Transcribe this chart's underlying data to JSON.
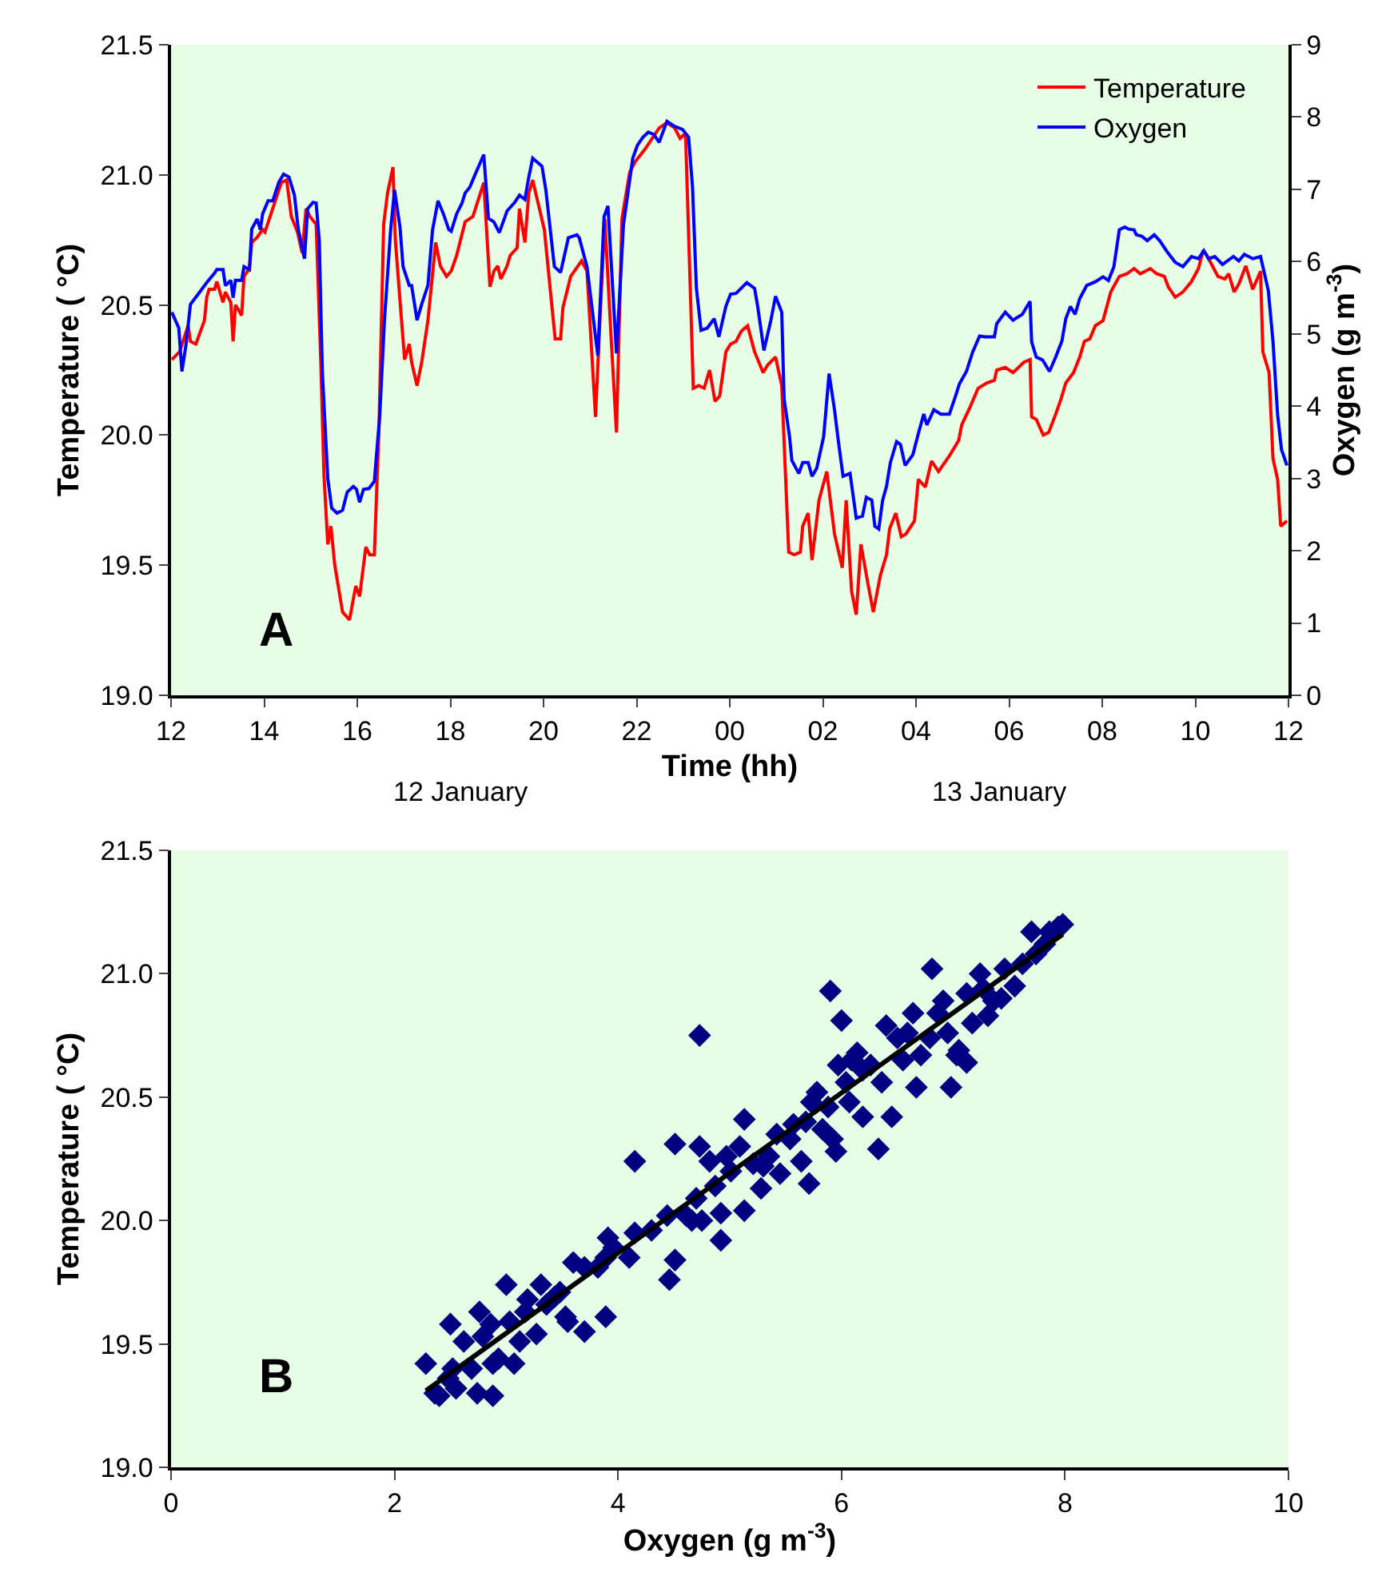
{
  "chart_data": [
    {
      "type": "line",
      "xlabel": "Time (hh)",
      "ylabel": "Temperature ( °C)",
      "y2label": "Oxygen (g m$^{-3}$)",
      "annotations": [
        "A",
        "12 January",
        "13 January"
      ],
      "legend": "top right",
      "xlim": [
        "--01-12T12:00",
        "--01-13T12:00"
      ],
      "xticks": [
        {
          "value": "--01-12T12:00",
          "label": "12"
        },
        {
          "value": "--01-12T14:00",
          "label": "14"
        },
        {
          "value": "--01-12T16:00",
          "label": "16"
        },
        {
          "value": "--01-12T18:00",
          "label": "18"
        },
        {
          "value": "--01-12T20:00",
          "label": "20"
        },
        {
          "value": "--01-12T22:00",
          "label": "22"
        },
        {
          "value": "--01-13T00:00",
          "label": "00"
        },
        {
          "value": "--01-13T02:00",
          "label": "02"
        },
        {
          "value": "--01-13T04:00",
          "label": "04"
        },
        {
          "value": "--01-13T06:00",
          "label": "06"
        },
        {
          "value": "--01-13T08:00",
          "label": "08"
        },
        {
          "value": "--01-13T10:00",
          "label": "10"
        },
        {
          "value": "--01-13T12:00",
          "label": "12"
        }
      ],
      "ylim": [
        19,
        21.5
      ],
      "yticks": [
        {
          "value": 19,
          "label": "19.0"
        },
        19.5,
        {
          "value": 20,
          "label": "20.0"
        },
        20.5,
        {
          "value": 21,
          "label": "21.0"
        },
        21.5
      ],
      "y2lim": [
        0,
        9
      ],
      "y2ticks": [
        0,
        1,
        2,
        3,
        4,
        5,
        6,
        7,
        8,
        9
      ],
      "series": [
        {
          "name": "Temperature",
          "color": "#ff0000",
          "x": [
            "--01-12T12:01",
            "--01-12T12:11",
            "--01-12T12:22",
            "--01-12T12:25",
            "--01-12T12:32",
            "--01-12T12:43",
            "--01-12T12:46",
            "--01-12T12:49",
            "--01-12T12:56",
            "--01-12T12:59",
            "--01-12T13:07",
            "--01-12T13:10",
            "--01-12T13:17",
            "--01-12T13:20",
            "--01-12T13:23",
            "--01-12T13:31",
            "--01-12T13:34",
            "--01-12T13:41",
            "--01-12T13:44",
            "--01-12T13:51",
            "--01-12T13:58",
            "--01-12T14:01",
            "--01-12T14:11",
            "--01-12T14:22",
            "--01-12T14:29",
            "--01-12T14:35",
            "--01-12T14:43",
            "--01-12T14:49",
            "--01-12T14:54",
            "--01-12T14:59",
            "--01-12T15:07",
            "--01-12T15:13",
            "--01-12T15:17",
            "--01-12T15:22",
            "--01-12T15:26",
            "--01-12T15:31",
            "--01-12T15:41",
            "--01-12T15:50",
            "--01-12T15:58",
            "--01-12T16:03",
            "--01-12T16:11",
            "--01-12T16:16",
            "--01-12T16:22",
            "--01-12T16:28",
            "--01-12T16:34",
            "--01-12T16:39",
            "--01-12T16:46",
            "--01-12T16:49",
            "--01-12T16:56",
            "--01-12T17:01",
            "--01-12T17:07",
            "--01-12T17:10",
            "--01-12T17:17",
            "--01-12T17:23",
            "--01-12T17:31",
            "--01-12T17:41",
            "--01-12T17:47",
            "--01-12T17:55",
            "--01-12T18:01",
            "--01-12T18:08",
            "--01-12T18:19",
            "--01-12T18:29",
            "--01-12T18:43",
            "--01-12T18:51",
            "--01-12T18:56",
            "--01-12T19:01",
            "--01-12T19:05",
            "--01-12T19:13",
            "--01-12T19:17",
            "--01-12T19:26",
            "--01-12T19:29",
            "--01-12T19:36",
            "--01-12T19:41",
            "--01-12T19:46",
            "--01-12T20:01",
            "--01-12T20:15",
            "--01-12T20:22",
            "--01-12T20:25",
            "--01-12T20:35",
            "--01-12T20:49",
            "--01-12T20:56",
            "--01-12T21:07",
            "--01-12T21:12",
            "--01-12T21:19",
            "--01-12T21:27",
            "--01-12T21:34",
            "--01-12T21:41",
            "--01-12T21:51",
            "--01-12T21:58",
            "--01-12T22:11",
            "--01-12T22:29",
            "--01-12T22:39",
            "--01-12T22:49",
            "--01-12T22:56",
            "--01-12T23:03",
            "--01-12T23:13",
            "--01-12T23:20",
            "--01-12T23:27",
            "--01-12T23:34",
            "--01-12T23:41",
            "--01-12T23:47",
            "--01-12T23:55",
            "--01-13T00:01",
            "--01-13T00:08",
            "--01-13T00:15",
            "--01-13T00:23",
            "--01-13T00:32",
            "--01-13T00:43",
            "--01-13T00:49",
            "--01-13T00:59",
            "--01-13T01:07",
            "--01-13T01:16",
            "--01-13T01:23",
            "--01-13T01:31",
            "--01-13T01:34",
            "--01-13T01:41",
            "--01-13T01:46",
            "--01-13T01:55",
            "--01-13T02:05",
            "--01-13T02:15",
            "--01-13T02:25",
            "--01-13T02:30",
            "--01-13T02:37",
            "--01-13T02:43",
            "--01-13T02:49",
            "--01-13T02:58",
            "--01-13T03:05",
            "--01-13T03:14",
            "--01-13T03:22",
            "--01-13T03:26",
            "--01-13T03:34",
            "--01-13T03:41",
            "--01-13T03:47",
            "--01-13T03:58",
            "--01-13T04:03",
            "--01-13T04:12",
            "--01-13T04:20",
            "--01-13T04:29",
            "--01-13T04:43",
            "--01-13T04:55",
            "--01-13T04:59",
            "--01-13T05:10",
            "--01-13T05:20",
            "--01-13T05:31",
            "--01-13T05:41",
            "--01-13T05:44",
            "--01-13T05:55",
            "--01-13T06:05",
            "--01-13T06:19",
            "--01-13T06:27",
            "--01-13T06:29",
            "--01-13T06:35",
            "--01-13T06:44",
            "--01-13T06:51",
            "--01-13T07:00",
            "--01-13T07:07",
            "--01-13T07:13",
            "--01-13T07:23",
            "--01-13T07:31",
            "--01-13T07:37",
            "--01-13T07:44",
            "--01-13T07:51",
            "--01-13T08:01",
            "--01-13T08:11",
            "--01-13T08:22",
            "--01-13T08:32",
            "--01-13T08:41",
            "--01-13T08:49",
            "--01-13T09:02",
            "--01-13T09:10",
            "--01-13T09:20",
            "--01-13T09:25",
            "--01-13T09:34",
            "--01-13T09:44",
            "--01-13T09:55",
            "--01-13T10:04",
            "--01-13T10:10",
            "--01-13T10:15",
            "--01-13T10:22",
            "--01-13T10:29",
            "--01-13T10:38",
            "--01-13T10:43",
            "--01-13T10:50",
            "--01-13T10:56",
            "--01-13T11:05",
            "--01-13T11:14",
            "--01-13T11:24",
            "--01-13T11:27",
            "--01-13T11:35",
            "--01-13T11:40",
            "--01-13T11:46",
            "--01-13T11:50",
            "--01-13T11:58"
          ],
          "values": [
            20.29,
            20.32,
            20.42,
            20.36,
            20.35,
            20.44,
            20.53,
            20.56,
            20.56,
            20.59,
            20.51,
            20.55,
            20.51,
            20.36,
            20.5,
            20.46,
            20.61,
            20.64,
            20.74,
            20.76,
            20.79,
            20.78,
            20.87,
            20.97,
            20.98,
            20.84,
            20.78,
            20.7,
            20.87,
            20.84,
            20.81,
            20.28,
            19.85,
            19.58,
            19.65,
            19.5,
            19.32,
            19.29,
            19.42,
            19.38,
            19.57,
            19.54,
            19.54,
            20.03,
            20.81,
            20.93,
            21.03,
            20.75,
            20.48,
            20.29,
            20.35,
            20.28,
            20.19,
            20.28,
            20.44,
            20.74,
            20.65,
            20.61,
            20.63,
            20.69,
            20.82,
            20.84,
            20.97,
            20.57,
            20.63,
            20.65,
            20.6,
            20.65,
            20.69,
            20.72,
            20.87,
            20.74,
            20.93,
            20.98,
            20.79,
            20.37,
            20.37,
            20.49,
            20.61,
            20.67,
            20.63,
            20.07,
            20.4,
            20.83,
            20.38,
            20.01,
            20.83,
            21.01,
            21.05,
            21.1,
            21.18,
            21.2,
            21.18,
            21.14,
            21.16,
            20.18,
            20.19,
            20.18,
            20.25,
            20.13,
            20.15,
            20.32,
            20.35,
            20.36,
            20.4,
            20.42,
            20.32,
            20.24,
            20.27,
            20.3,
            20.19,
            19.55,
            19.54,
            19.55,
            19.65,
            19.7,
            19.52,
            19.75,
            19.86,
            19.62,
            19.49,
            19.75,
            19.4,
            19.31,
            19.58,
            19.43,
            19.32,
            19.46,
            19.54,
            19.64,
            19.7,
            19.61,
            19.62,
            19.67,
            19.83,
            19.8,
            19.9,
            19.86,
            19.92,
            19.98,
            20.04,
            20.11,
            20.18,
            20.2,
            20.21,
            20.25,
            20.26,
            20.24,
            20.28,
            20.29,
            20.07,
            20.06,
            20.0,
            20.01,
            20.08,
            20.14,
            20.2,
            20.24,
            20.3,
            20.36,
            20.37,
            20.42,
            20.44,
            20.55,
            20.61,
            20.62,
            20.64,
            20.62,
            20.64,
            20.62,
            20.61,
            20.57,
            20.53,
            20.55,
            20.59,
            20.64,
            20.71,
            20.69,
            20.65,
            20.61,
            20.6,
            20.62,
            20.55,
            20.58,
            20.65,
            20.56,
            20.63,
            20.32,
            20.24,
            19.91,
            19.83,
            19.65,
            19.67
          ]
        },
        {
          "name": "Oxygen",
          "color": "#0000ff",
          "axis": "y2",
          "x": [
            "--01-12T12:01",
            "--01-12T12:10",
            "--01-12T12:14",
            "--01-12T12:19",
            "--01-12T12:25",
            "--01-12T12:35",
            "--01-12T12:46",
            "--01-12T12:56",
            "--01-12T12:59",
            "--01-12T13:07",
            "--01-12T13:10",
            "--01-12T13:17",
            "--01-12T13:20",
            "--01-12T13:23",
            "--01-12T13:31",
            "--01-12T13:34",
            "--01-12T13:41",
            "--01-12T13:44",
            "--01-12T13:51",
            "--01-12T13:55",
            "--01-12T13:58",
            "--01-12T14:05",
            "--01-12T14:11",
            "--01-12T14:19",
            "--01-12T14:25",
            "--01-12T14:32",
            "--01-12T14:39",
            "--01-12T14:44",
            "--01-12T14:52",
            "--01-12T14:56",
            "--01-12T15:03",
            "--01-12T15:07",
            "--01-12T15:11",
            "--01-12T15:15",
            "--01-12T15:22",
            "--01-12T15:27",
            "--01-12T15:34",
            "--01-12T15:41",
            "--01-12T15:47",
            "--01-12T15:55",
            "--01-12T15:59",
            "--01-12T16:03",
            "--01-12T16:08",
            "--01-12T16:15",
            "--01-12T16:22",
            "--01-12T16:29",
            "--01-12T16:35",
            "--01-12T16:43",
            "--01-12T16:48",
            "--01-12T16:55",
            "--01-12T16:59",
            "--01-12T17:07",
            "--01-12T17:10",
            "--01-12T17:17",
            "--01-12T17:23",
            "--01-12T17:31",
            "--01-12T17:37",
            "--01-12T17:44",
            "--01-12T17:51",
            "--01-12T17:58",
            "--01-12T18:01",
            "--01-12T18:08",
            "--01-12T18:15",
            "--01-12T18:19",
            "--01-12T18:25",
            "--01-12T18:32",
            "--01-12T18:43",
            "--01-12T18:49",
            "--01-12T18:56",
            "--01-12T19:03",
            "--01-12T19:13",
            "--01-12T19:23",
            "--01-12T19:29",
            "--01-12T19:36",
            "--01-12T19:41",
            "--01-12T19:46",
            "--01-12T19:58",
            "--01-12T20:03",
            "--01-12T20:14",
            "--01-12T20:22",
            "--01-12T20:32",
            "--01-12T20:43",
            "--01-12T20:46",
            "--01-12T20:56",
            "--01-12T21:10",
            "--01-12T21:18",
            "--01-12T21:23",
            "--01-12T21:34",
            "--01-12T21:43",
            "--01-12T21:55",
            "--01-12T22:01",
            "--01-12T22:08",
            "--01-12T22:15",
            "--01-12T22:22",
            "--01-12T22:29",
            "--01-12T22:39",
            "--01-12T22:49",
            "--01-12T22:59",
            "--01-12T23:07",
            "--01-12T23:12",
            "--01-12T23:17",
            "--01-12T23:23",
            "--01-12T23:31",
            "--01-12T23:40",
            "--01-12T23:46",
            "--01-12T23:55",
            "--01-13T00:01",
            "--01-13T00:08",
            "--01-13T00:22",
            "--01-13T00:32",
            "--01-13T00:36",
            "--01-13T00:44",
            "--01-13T00:53",
            "--01-13T00:59",
            "--01-13T01:07",
            "--01-13T01:10",
            "--01-13T01:17",
            "--01-13T01:20",
            "--01-13T01:29",
            "--01-13T01:34",
            "--01-13T01:41",
            "--01-13T01:46",
            "--01-13T01:52",
            "--01-13T02:01",
            "--01-13T02:08",
            "--01-13T02:15",
            "--01-13T02:20",
            "--01-13T02:26",
            "--01-13T02:35",
            "--01-13T02:43",
            "--01-13T02:51",
            "--01-13T02:56",
            "--01-13T03:03",
            "--01-13T03:07",
            "--01-13T03:12",
            "--01-13T03:17",
            "--01-13T03:22",
            "--01-13T03:27",
            "--01-13T03:35",
            "--01-13T03:40",
            "--01-13T03:46",
            "--01-13T03:56",
            "--01-13T04:03",
            "--01-13T04:10",
            "--01-13T04:14",
            "--01-13T04:23",
            "--01-13T04:32",
            "--01-13T04:43",
            "--01-13T04:50",
            "--01-13T04:56",
            "--01-13T05:05",
            "--01-13T05:13",
            "--01-13T05:22",
            "--01-13T05:29",
            "--01-13T05:41",
            "--01-13T05:44",
            "--01-13T05:55",
            "--01-13T06:05",
            "--01-13T06:17",
            "--01-13T06:27",
            "--01-13T06:29",
            "--01-13T06:35",
            "--01-13T06:43",
            "--01-13T06:52",
            "--01-13T07:00",
            "--01-13T07:08",
            "--01-13T07:13",
            "--01-13T07:19",
            "--01-13T07:25",
            "--01-13T07:31",
            "--01-13T07:40",
            "--01-13T07:51",
            "--01-13T08:01",
            "--01-13T08:08",
            "--01-13T08:15",
            "--01-13T08:22",
            "--01-13T08:29",
            "--01-13T08:34",
            "--01-13T08:41",
            "--01-13T08:44",
            "--01-13T08:51",
            "--01-13T08:58",
            "--01-13T09:07",
            "--01-13T09:14",
            "--01-13T09:24",
            "--01-13T09:34",
            "--01-13T09:44",
            "--01-13T09:55",
            "--01-13T10:04",
            "--01-13T10:11",
            "--01-13T10:17",
            "--01-13T10:25",
            "--01-13T10:35",
            "--01-13T10:49",
            "--01-13T10:56",
            "--01-13T11:03",
            "--01-13T11:14",
            "--01-13T11:24",
            "--01-13T11:34",
            "--01-13T11:40",
            "--01-13T11:46",
            "--01-13T11:51",
            "--01-13T11:58"
          ],
          "values": [
            5.3,
            5.08,
            4.48,
            4.83,
            5.41,
            5.55,
            5.71,
            5.84,
            5.89,
            5.89,
            5.67,
            5.74,
            5.5,
            5.74,
            5.74,
            5.93,
            5.89,
            6.45,
            6.59,
            6.44,
            6.66,
            6.84,
            6.84,
            7.1,
            7.21,
            7.17,
            6.92,
            6.44,
            6.04,
            6.73,
            6.82,
            6.81,
            6.29,
            4.46,
            3.0,
            2.59,
            2.52,
            2.56,
            2.81,
            2.89,
            2.85,
            2.67,
            2.85,
            2.86,
            2.96,
            3.88,
            5.19,
            6.44,
            6.99,
            6.48,
            5.93,
            5.67,
            5.67,
            5.19,
            5.41,
            5.67,
            6.44,
            6.84,
            6.66,
            6.44,
            6.42,
            6.66,
            6.81,
            6.95,
            7.03,
            7.21,
            7.48,
            6.6,
            6.55,
            6.4,
            6.7,
            6.82,
            6.92,
            6.86,
            7.17,
            7.43,
            7.32,
            6.99,
            5.93,
            5.85,
            6.33,
            6.37,
            6.33,
            5.93,
            4.7,
            6.62,
            6.77,
            4.73,
            6.51,
            7.43,
            7.61,
            7.72,
            7.79,
            7.76,
            7.65,
            7.94,
            7.87,
            7.83,
            7.72,
            7.03,
            5.63,
            5.05,
            5.08,
            5.21,
            4.96,
            5.38,
            5.55,
            5.56,
            5.71,
            5.63,
            5.38,
            4.77,
            5.19,
            5.52,
            5.3,
            4.1,
            3.58,
            3.25,
            3.07,
            3.22,
            3.22,
            3.03,
            3.14,
            3.58,
            4.45,
            3.95,
            3.51,
            3.03,
            3.07,
            2.45,
            2.48,
            2.74,
            2.7,
            2.34,
            2.3,
            2.7,
            2.89,
            3.22,
            3.51,
            3.47,
            3.18,
            3.33,
            3.62,
            3.89,
            3.74,
            3.95,
            3.89,
            3.89,
            4.11,
            4.31,
            4.48,
            4.75,
            4.97,
            4.96,
            4.96,
            5.14,
            5.3,
            5.19,
            5.27,
            5.45,
            4.89,
            4.68,
            4.64,
            4.48,
            4.68,
            4.9,
            5.21,
            5.38,
            5.27,
            5.49,
            5.67,
            5.72,
            5.79,
            5.74,
            5.93,
            6.44,
            6.48,
            6.45,
            6.44,
            6.37,
            6.35,
            6.29,
            6.37,
            6.29,
            6.13,
            5.99,
            5.93,
            6.07,
            6.04,
            6.15,
            6.04,
            6.07,
            5.96,
            6.07,
            6.01,
            6.1,
            6.04,
            6.07,
            5.6,
            4.9,
            3.88,
            3.4,
            3.18
          ]
        }
      ]
    },
    {
      "type": "scatter",
      "xlabel": "Oxygen (g m$^{-3}$)",
      "ylabel": "Temperature ( °C)",
      "annotations": [
        "B"
      ],
      "xlim": [
        0,
        10
      ],
      "xticks": [
        0,
        2,
        4,
        6,
        8,
        10
      ],
      "ylim": [
        19,
        21.5
      ],
      "yticks": [
        {
          "value": 19,
          "label": "19.0"
        },
        19.5,
        {
          "value": 20,
          "label": "20.0"
        },
        20.5,
        {
          "value": 21,
          "label": "21.0"
        },
        21.5
      ],
      "series": [
        {
          "color": "#000080",
          "marker": "diamond",
          "x": [
            2.28,
            2.36,
            2.4,
            2.48,
            2.52,
            2.55,
            2.5,
            2.62,
            2.69,
            2.74,
            2.76,
            2.79,
            2.86,
            2.88,
            2.88,
            2.93,
            3.0,
            3.03,
            3.07,
            3.12,
            3.17,
            3.19,
            3.27,
            3.31,
            3.36,
            3.43,
            3.48,
            3.53,
            3.55,
            3.6,
            3.7,
            3.7,
            3.82,
            3.89,
            3.89,
            3.91,
            3.96,
            4.1,
            4.15,
            4.15,
            4.3,
            4.44,
            4.46,
            4.51,
            4.51,
            4.61,
            4.66,
            4.7,
            4.73,
            4.73,
            4.75,
            4.82,
            4.87,
            4.92,
            4.92,
            4.97,
            5.01,
            5.09,
            5.13,
            5.13,
            5.21,
            5.28,
            5.3,
            5.35,
            5.42,
            5.45,
            5.54,
            5.57,
            5.64,
            5.68,
            5.71,
            5.73,
            5.78,
            5.83,
            5.88,
            5.9,
            5.92,
            5.95,
            5.97,
            6.0,
            6.04,
            6.07,
            6.09,
            6.14,
            6.19,
            6.19,
            6.26,
            6.33,
            6.36,
            6.4,
            6.45,
            6.5,
            6.55,
            6.59,
            6.64,
            6.67,
            6.71,
            6.79,
            6.81,
            6.86,
            6.91,
            6.95,
            6.98,
            7.03,
            7.05,
            7.12,
            7.12,
            7.17,
            7.24,
            7.27,
            7.31,
            7.36,
            7.43,
            7.46,
            7.55,
            7.62,
            7.7,
            7.74,
            7.82,
            7.86,
            7.94,
            7.98
          ],
          "values": [
            19.42,
            19.3,
            19.29,
            19.36,
            19.4,
            19.32,
            19.58,
            19.51,
            19.4,
            19.3,
            19.63,
            19.53,
            19.58,
            19.42,
            19.29,
            19.44,
            19.74,
            19.59,
            19.42,
            19.51,
            19.63,
            19.68,
            19.54,
            19.74,
            19.66,
            19.69,
            19.71,
            19.61,
            19.59,
            19.83,
            19.55,
            19.81,
            19.81,
            19.61,
            19.85,
            19.93,
            19.89,
            19.85,
            19.95,
            20.24,
            19.96,
            20.02,
            19.76,
            19.84,
            20.31,
            20.02,
            20.0,
            20.09,
            20.3,
            20.75,
            20.0,
            20.24,
            20.14,
            20.03,
            19.92,
            20.26,
            20.2,
            20.3,
            20.04,
            20.41,
            20.23,
            20.13,
            20.22,
            20.26,
            20.35,
            20.19,
            20.33,
            20.39,
            20.24,
            20.4,
            20.15,
            20.48,
            20.52,
            20.37,
            20.46,
            20.93,
            20.33,
            20.28,
            20.63,
            20.81,
            20.56,
            20.48,
            20.65,
            20.68,
            20.61,
            20.42,
            20.63,
            20.29,
            20.56,
            20.79,
            20.42,
            20.74,
            20.65,
            20.76,
            20.84,
            20.54,
            20.67,
            20.74,
            21.02,
            20.84,
            20.89,
            20.76,
            20.54,
            20.67,
            20.69,
            20.64,
            20.92,
            20.8,
            21.0,
            20.94,
            20.83,
            20.89,
            20.9,
            21.02,
            20.95,
            21.04,
            21.17,
            21.08,
            21.12,
            21.17,
            21.19,
            21.2
          ]
        },
        {
          "type": "line",
          "color": "#000000",
          "x": [
            2.28,
            7.98
          ],
          "values": [
            19.31,
            21.16
          ]
        }
      ]
    }
  ]
}
